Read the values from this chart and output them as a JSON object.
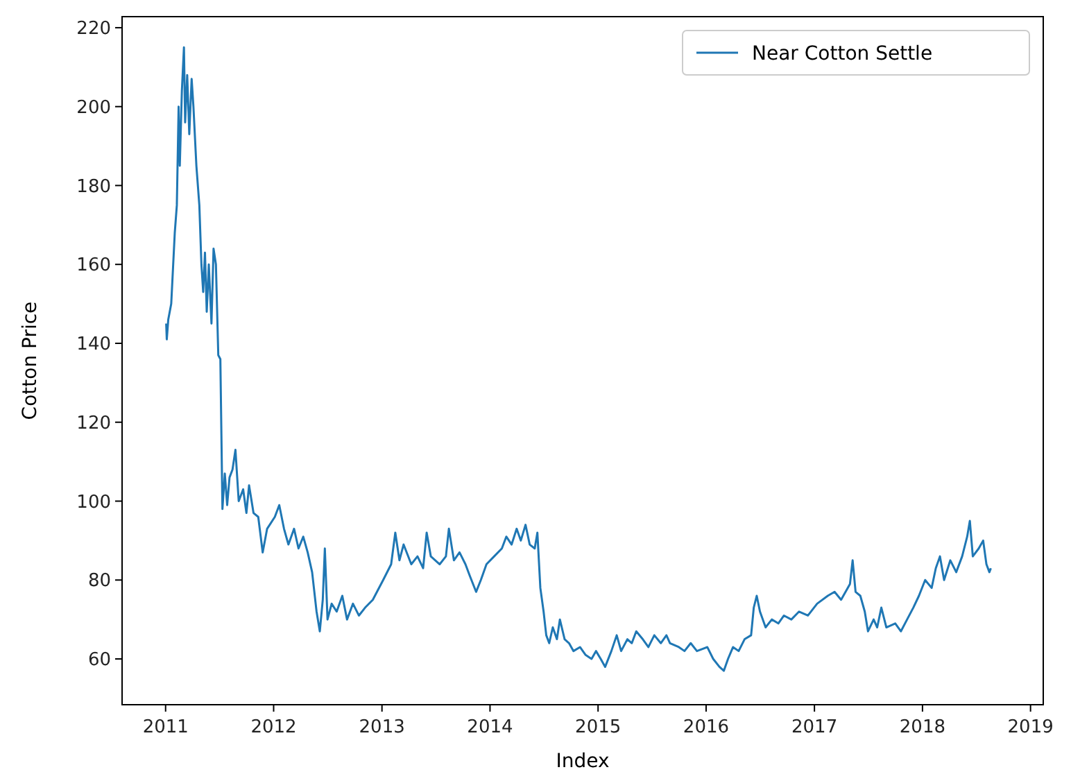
{
  "chart_data": {
    "type": "line",
    "xlabel": "Index",
    "ylabel": "Cotton Price",
    "x": [
      "2011-01-03",
      "2011-01-05",
      "2011-01-10",
      "2011-01-20",
      "2011-02-01",
      "2011-02-08",
      "2011-02-14",
      "2011-02-18",
      "2011-02-25",
      "2011-03-04",
      "2011-03-08",
      "2011-03-15",
      "2011-03-22",
      "2011-03-30",
      "2011-04-05",
      "2011-04-15",
      "2011-04-25",
      "2011-05-02",
      "2011-05-08",
      "2011-05-14",
      "2011-05-20",
      "2011-05-27",
      "2011-06-05",
      "2011-06-12",
      "2011-06-20",
      "2011-06-28",
      "2011-07-05",
      "2011-07-12",
      "2011-07-20",
      "2011-07-28",
      "2011-08-05",
      "2011-08-15",
      "2011-08-25",
      "2011-09-05",
      "2011-09-20",
      "2011-10-01",
      "2011-10-10",
      "2011-10-25",
      "2011-11-10",
      "2011-11-25",
      "2011-12-10",
      "2012-01-05",
      "2012-01-20",
      "2012-02-05",
      "2012-02-20",
      "2012-03-10",
      "2012-03-25",
      "2012-04-10",
      "2012-04-25",
      "2012-05-10",
      "2012-05-25",
      "2012-06-05",
      "2012-06-15",
      "2012-06-22",
      "2012-07-01",
      "2012-07-15",
      "2012-08-01",
      "2012-08-20",
      "2012-09-05",
      "2012-09-25",
      "2012-10-15",
      "2012-11-05",
      "2012-12-01",
      "2013-01-05",
      "2013-02-01",
      "2013-02-15",
      "2013-03-01",
      "2013-03-15",
      "2013-04-10",
      "2013-05-01",
      "2013-05-20",
      "2013-06-01",
      "2013-06-15",
      "2013-07-15",
      "2013-08-05",
      "2013-08-15",
      "2013-09-01",
      "2013-09-20",
      "2013-10-10",
      "2013-10-25",
      "2013-11-15",
      "2013-12-01",
      "2013-12-20",
      "2014-01-15",
      "2014-02-10",
      "2014-02-25",
      "2014-03-15",
      "2014-04-01",
      "2014-04-15",
      "2014-05-01",
      "2014-05-15",
      "2014-06-01",
      "2014-06-10",
      "2014-06-20",
      "2014-07-01",
      "2014-07-10",
      "2014-07-20",
      "2014-08-01",
      "2014-08-15",
      "2014-08-25",
      "2014-09-10",
      "2014-09-25",
      "2014-10-10",
      "2014-11-01",
      "2014-11-20",
      "2014-12-10",
      "2014-12-25",
      "2015-01-10",
      "2015-01-25",
      "2015-02-15",
      "2015-03-05",
      "2015-03-20",
      "2015-04-10",
      "2015-04-25",
      "2015-05-10",
      "2015-06-01",
      "2015-06-20",
      "2015-07-10",
      "2015-08-01",
      "2015-08-20",
      "2015-09-01",
      "2015-10-01",
      "2015-10-20",
      "2015-11-10",
      "2015-12-01",
      "2016-01-05",
      "2016-01-25",
      "2016-02-15",
      "2016-03-01",
      "2016-03-15",
      "2016-04-01",
      "2016-04-20",
      "2016-05-10",
      "2016-06-01",
      "2016-06-10",
      "2016-06-20",
      "2016-07-01",
      "2016-07-20",
      "2016-08-10",
      "2016-09-01",
      "2016-09-20",
      "2016-10-15",
      "2016-11-10",
      "2016-12-10",
      "2017-01-10",
      "2017-02-15",
      "2017-03-10",
      "2017-04-01",
      "2017-05-01",
      "2017-05-10",
      "2017-05-20",
      "2017-06-05",
      "2017-06-20",
      "2017-07-01",
      "2017-07-20",
      "2017-08-01",
      "2017-08-15",
      "2017-09-01",
      "2017-10-01",
      "2017-10-20",
      "2017-11-10",
      "2017-12-01",
      "2017-12-20",
      "2018-01-10",
      "2018-02-01",
      "2018-02-15",
      "2018-03-01",
      "2018-03-15",
      "2018-04-05",
      "2018-04-25",
      "2018-05-15",
      "2018-06-01",
      "2018-06-10",
      "2018-06-20",
      "2018-07-10",
      "2018-07-25",
      "2018-08-05",
      "2018-08-15",
      "2018-08-20"
    ],
    "series": [
      {
        "name": "Near Cotton Settle",
        "color": "#1f77b4",
        "values": [
          145,
          141,
          146,
          150,
          168,
          175,
          200,
          185,
          204,
          215,
          196,
          208,
          193,
          207,
          200,
          185,
          175,
          160,
          153,
          163,
          148,
          160,
          145,
          164,
          160,
          137,
          136,
          98,
          107,
          99,
          106,
          108,
          113,
          100,
          103,
          97,
          104,
          97,
          96,
          87,
          93,
          96,
          99,
          93,
          89,
          93,
          88,
          91,
          87,
          82,
          72,
          67,
          75,
          88,
          70,
          74,
          72,
          76,
          70,
          74,
          71,
          73,
          75,
          80,
          84,
          92,
          85,
          89,
          84,
          86,
          83,
          92,
          86,
          84,
          86,
          93,
          85,
          87,
          84,
          81,
          77,
          80,
          84,
          86,
          88,
          91,
          89,
          93,
          90,
          94,
          89,
          88,
          92,
          78,
          72,
          66,
          64,
          68,
          65,
          70,
          65,
          64,
          62,
          63,
          61,
          60,
          62,
          60,
          58,
          62,
          66,
          62,
          65,
          64,
          67,
          65,
          63,
          66,
          64,
          66,
          64,
          63,
          62,
          64,
          62,
          63,
          60,
          58,
          57,
          60,
          63,
          62,
          65,
          66,
          73,
          76,
          72,
          68,
          70,
          69,
          71,
          70,
          72,
          71,
          74,
          76,
          77,
          75,
          79,
          85,
          77,
          76,
          72,
          67,
          70,
          68,
          73,
          68,
          69,
          67,
          70,
          73,
          76,
          80,
          78,
          83,
          86,
          80,
          85,
          82,
          86,
          91,
          95,
          86,
          88,
          90,
          84,
          82,
          83
        ]
      }
    ],
    "xlim": [
      "2010-08-07",
      "2019-02-13"
    ],
    "xticks": [
      {
        "value": "2011-01-01",
        "label": "2011"
      },
      {
        "value": "2012-01-01",
        "label": "2012"
      },
      {
        "value": "2013-01-01",
        "label": "2013"
      },
      {
        "value": "2014-01-01",
        "label": "2014"
      },
      {
        "value": "2015-01-01",
        "label": "2015"
      },
      {
        "value": "2016-01-01",
        "label": "2016"
      },
      {
        "value": "2017-01-01",
        "label": "2017"
      },
      {
        "value": "2018-01-01",
        "label": "2018"
      },
      {
        "value": "2019-01-01",
        "label": "2019"
      }
    ],
    "ylim": [
      48.4,
      222.8
    ],
    "yticks": [
      60,
      80,
      100,
      120,
      140,
      160,
      180,
      200,
      220
    ],
    "legend": "top right",
    "marker": "none",
    "line_style": "solid"
  }
}
